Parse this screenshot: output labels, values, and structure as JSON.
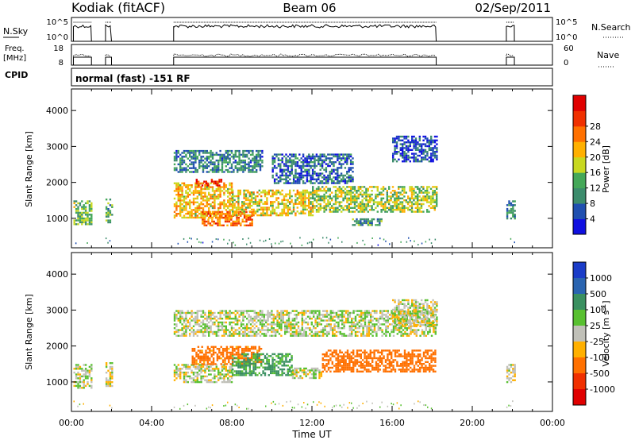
{
  "header": {
    "radar": "Kodiak (fitACF)",
    "beam": "Beam 06",
    "date": "02/Sep/2011"
  },
  "nsky_panel": {
    "left_label": "N.Sky",
    "left_ticks": [
      "10^5",
      "10^0"
    ],
    "right_label": "N.Search",
    "right_ticks": [
      "10^5",
      "10^0"
    ],
    "right_legend_line": "dotted"
  },
  "freq_panel": {
    "left_label_line1": "Freq.",
    "left_label_line2": "[MHz]",
    "left_ticks": [
      "18",
      "8"
    ],
    "right_label": "Nave",
    "right_ticks": [
      "60",
      "0"
    ],
    "right_legend_line": "dotted"
  },
  "cpid": {
    "label": "CPID",
    "text": "normal (fast) -151 RF"
  },
  "chart_data": [
    {
      "type": "heatmap",
      "name": "power",
      "ylabel": "Slant Range [km]",
      "xlabel": "",
      "xlim_hours": [
        0,
        24
      ],
      "ylim": [
        180,
        4600
      ],
      "yticks": [
        "1000",
        "2000",
        "3000",
        "4000"
      ],
      "colorbar": {
        "label": "Power [dB]",
        "ticks": [
          "4",
          "8",
          "12",
          "16",
          "20",
          "24",
          "28"
        ],
        "range": [
          0,
          30
        ],
        "colors": [
          "#1010e0",
          "#2050b0",
          "#3c8c6c",
          "#44a858",
          "#c8d820",
          "#ffb000",
          "#ff7000",
          "#f03000",
          "#e00000"
        ]
      },
      "data_intervals_hours": [
        [
          0.1,
          1.0
        ],
        [
          1.7,
          2.0
        ],
        [
          5.1,
          18.2
        ],
        [
          21.7,
          22.1
        ]
      ],
      "echo_regions": [
        {
          "t": [
            0.1,
            1.0
          ],
          "range_km": [
            850,
            1500
          ],
          "mean_db": 12
        },
        {
          "t": [
            1.7,
            2.0
          ],
          "range_km": [
            900,
            1550
          ],
          "mean_db": 10
        },
        {
          "t": [
            5.1,
            8.0
          ],
          "range_km": [
            1000,
            2000
          ],
          "mean_db": 18
        },
        {
          "t": [
            6.2,
            7.5
          ],
          "range_km": [
            1900,
            2100
          ],
          "mean_db": 26
        },
        {
          "t": [
            6.5,
            9.0
          ],
          "range_km": [
            800,
            1200
          ],
          "mean_db": 22
        },
        {
          "t": [
            8.0,
            12.0
          ],
          "range_km": [
            1100,
            1800
          ],
          "mean_db": 16
        },
        {
          "t": [
            5.1,
            9.5
          ],
          "range_km": [
            2300,
            2900
          ],
          "mean_db": 8
        },
        {
          "t": [
            10.0,
            14.0
          ],
          "range_km": [
            2000,
            2800
          ],
          "mean_db": 6
        },
        {
          "t": [
            12.0,
            18.2
          ],
          "range_km": [
            1200,
            1900
          ],
          "mean_db": 14
        },
        {
          "t": [
            14.0,
            15.5
          ],
          "range_km": [
            800,
            1000
          ],
          "mean_db": 10
        },
        {
          "t": [
            16.0,
            18.2
          ],
          "range_km": [
            2600,
            3300
          ],
          "mean_db": 5
        },
        {
          "t": [
            21.7,
            22.1
          ],
          "range_km": [
            1000,
            1500
          ],
          "mean_db": 9
        }
      ]
    },
    {
      "type": "heatmap",
      "name": "velocity",
      "ylabel": "Slant Range [km]",
      "xlabel": "Time UT",
      "xlim_hours": [
        0,
        24
      ],
      "ylim": [
        180,
        4600
      ],
      "yticks": [
        "1000",
        "2000",
        "3000",
        "4000"
      ],
      "xticks": [
        "00:00",
        "04:00",
        "08:00",
        "12:00",
        "16:00",
        "20:00",
        "00:00"
      ],
      "colorbar": {
        "label": "Velocity [m s^-1]",
        "ticks": [
          "1000",
          "500",
          "100",
          "25",
          "-25",
          "-100",
          "-500",
          "-1000"
        ],
        "colors": [
          "#1a3cc8",
          "#2a64b0",
          "#3a9060",
          "#58c030",
          "#c0c0b8",
          "#ffb000",
          "#ff7000",
          "#f03000",
          "#e00000"
        ]
      },
      "echo_regions": [
        {
          "t": [
            0.1,
            1.0
          ],
          "range_km": [
            850,
            1500
          ],
          "velocity": 0
        },
        {
          "t": [
            1.7,
            2.0
          ],
          "range_km": [
            900,
            1550
          ],
          "velocity": 0
        },
        {
          "t": [
            5.1,
            8.0
          ],
          "range_km": [
            1000,
            1500
          ],
          "velocity": 0
        },
        {
          "t": [
            6.0,
            9.5
          ],
          "range_km": [
            1500,
            2000
          ],
          "velocity": -150
        },
        {
          "t": [
            8.0,
            11.0
          ],
          "range_km": [
            1200,
            1800
          ],
          "velocity": 120
        },
        {
          "t": [
            11.0,
            12.5
          ],
          "range_km": [
            1100,
            1400
          ],
          "velocity": 0
        },
        {
          "t": [
            12.5,
            18.2
          ],
          "range_km": [
            1300,
            1900
          ],
          "velocity": -200
        },
        {
          "t": [
            5.1,
            18.2
          ],
          "range_km": [
            2300,
            3000
          ],
          "velocity": 10
        },
        {
          "t": [
            16.0,
            18.2
          ],
          "range_km": [
            2600,
            3300
          ],
          "velocity": 0
        },
        {
          "t": [
            21.7,
            22.1
          ],
          "range_km": [
            1000,
            1500
          ],
          "velocity": 0
        }
      ]
    }
  ]
}
